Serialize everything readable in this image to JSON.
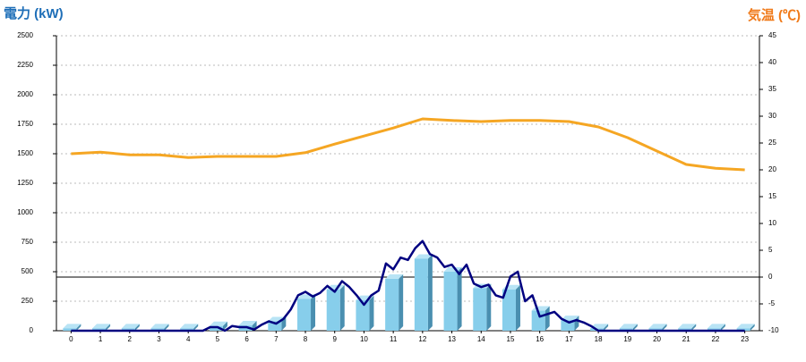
{
  "chart_data": {
    "type": "combo",
    "y_title": "電力 (kW)",
    "y2_title": "気温 (℃)",
    "categories": [
      "0",
      "1",
      "2",
      "3",
      "4",
      "5",
      "6",
      "7",
      "8",
      "9",
      "10",
      "11",
      "12",
      "13",
      "14",
      "15",
      "16",
      "17",
      "18",
      "19",
      "20",
      "21",
      "22",
      "23"
    ],
    "ylim": [
      0,
      2500
    ],
    "yticks": [
      0,
      250,
      500,
      750,
      1000,
      1250,
      1500,
      1750,
      2000,
      2250,
      2500
    ],
    "y2lim": [
      -10,
      45
    ],
    "y2ticks": [
      -10,
      -5,
      0,
      5,
      10,
      15,
      20,
      25,
      30,
      35,
      40,
      45
    ],
    "grid": true,
    "series": [
      {
        "type": "bar",
        "color": "#87ceeb",
        "values": [
          20,
          20,
          20,
          20,
          20,
          40,
          45,
          80,
          270,
          350,
          260,
          440,
          610,
          500,
          360,
          350,
          170,
          90,
          20,
          20,
          20,
          20,
          20,
          20
        ]
      },
      {
        "type": "line",
        "axis": "y2",
        "color": "#f5a623",
        "values": [
          23,
          23.3,
          22.8,
          22.8,
          22.3,
          22.5,
          22.5,
          22.5,
          23.2,
          24.8,
          26.3,
          27.8,
          29.5,
          29.2,
          29,
          29.2,
          29.2,
          29,
          28,
          26,
          23.5,
          21,
          20.3,
          20
        ]
      },
      {
        "type": "line",
        "color": "#000080",
        "x": [
          0,
          4.5,
          4.75,
          5,
          5.25,
          5.5,
          5.75,
          6,
          6.25,
          6.5,
          6.75,
          7,
          7.25,
          7.5,
          7.75,
          8,
          8.25,
          8.5,
          8.75,
          9,
          9.25,
          9.5,
          9.75,
          10,
          10.25,
          10.5,
          10.75,
          11,
          11.25,
          11.5,
          11.75,
          12,
          12.25,
          12.5,
          12.75,
          13,
          13.25,
          13.5,
          13.75,
          14,
          14.25,
          14.5,
          14.75,
          15,
          15.25,
          15.5,
          15.75,
          16,
          16.25,
          16.5,
          16.75,
          17,
          17.25,
          17.5,
          17.75,
          18,
          23
        ],
        "values": [
          0,
          0,
          30,
          30,
          0,
          40,
          30,
          30,
          10,
          50,
          80,
          60,
          100,
          180,
          300,
          330,
          290,
          320,
          380,
          330,
          420,
          370,
          300,
          220,
          300,
          340,
          570,
          520,
          620,
          600,
          700,
          760,
          650,
          620,
          540,
          560,
          480,
          560,
          400,
          370,
          390,
          300,
          280,
          460,
          500,
          250,
          300,
          120,
          140,
          160,
          100,
          70,
          90,
          70,
          40,
          0,
          0
        ]
      }
    ]
  }
}
